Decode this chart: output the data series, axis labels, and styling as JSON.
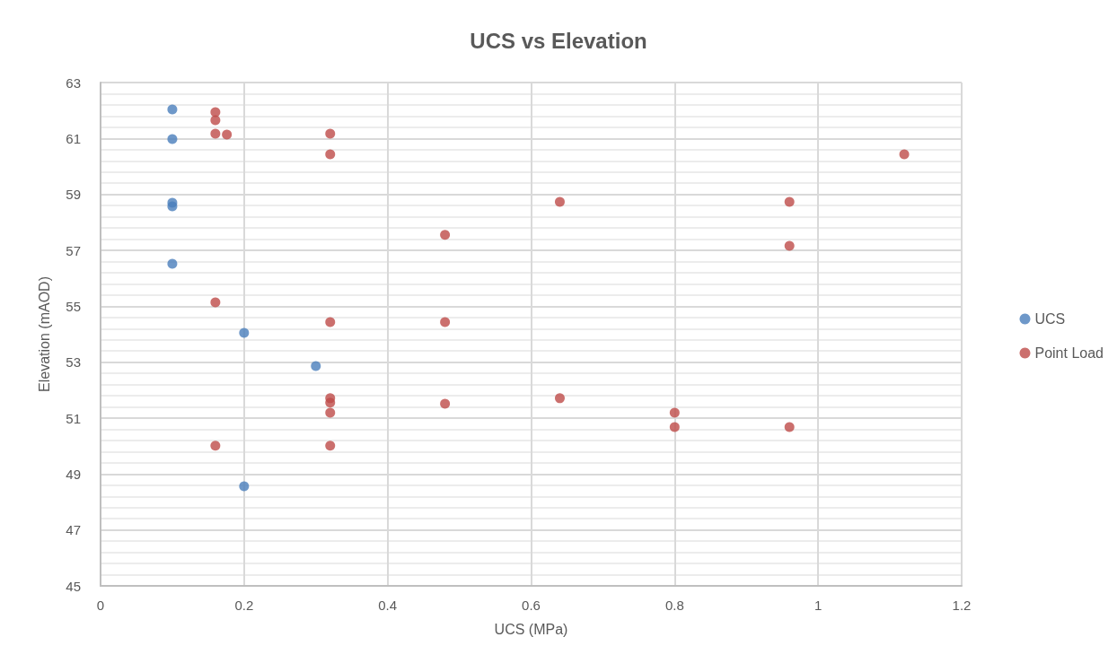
{
  "chart_data": {
    "type": "scatter",
    "title": "UCS vs Elevation",
    "xlabel": "UCS (MPa)",
    "ylabel": "Elevation (mAOD)",
    "xlim": [
      0,
      1.2
    ],
    "xticks": [
      0,
      0.2,
      0.4,
      0.6,
      0.8,
      1,
      1.2
    ],
    "ylim": [
      45,
      63
    ],
    "yticks": [
      45,
      47,
      49,
      51,
      53,
      55,
      57,
      59,
      61,
      63
    ],
    "grid": true,
    "legend": "right",
    "marker": "circle",
    "series": [
      {
        "name": "UCS",
        "color": "#4a7ebb",
        "x": [
          0.1,
          0.1,
          0.1,
          0.1,
          0.1,
          0.2,
          0.3,
          0.2
        ],
        "values": [
          62.04,
          60.98,
          58.7,
          58.57,
          56.52,
          54.05,
          52.86,
          48.56
        ]
      },
      {
        "name": "Point Load",
        "color": "#be4b48",
        "x": [
          0.16,
          0.16,
          0.16,
          0.176,
          0.32,
          0.32,
          1.12,
          0.64,
          0.96,
          0.48,
          0.96,
          0.16,
          0.32,
          0.48,
          0.32,
          0.32,
          0.32,
          0.48,
          0.64,
          0.8,
          0.8,
          0.96,
          0.16,
          0.32
        ],
        "values": [
          61.94,
          61.65,
          61.17,
          61.14,
          61.17,
          60.43,
          60.43,
          58.73,
          58.73,
          57.55,
          57.16,
          55.14,
          54.43,
          54.43,
          51.71,
          51.55,
          51.19,
          51.51,
          51.71,
          51.19,
          50.68,
          50.68,
          50.01,
          50.01
        ]
      }
    ]
  }
}
